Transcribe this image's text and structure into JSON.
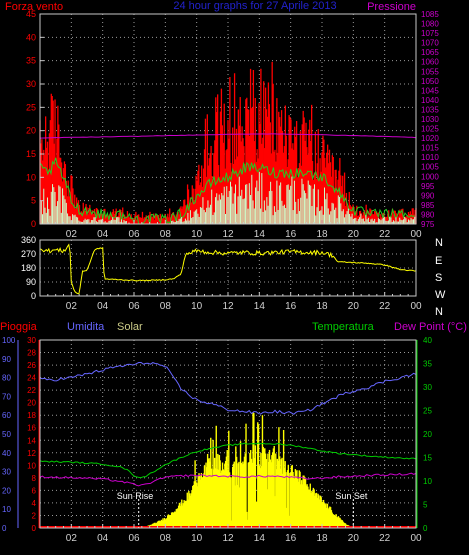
{
  "header": {
    "left_label": "Forza vento",
    "title": "24 hour graphs for 27 Aprile 2013",
    "right_label": "Pressione"
  },
  "colors": {
    "background": "#000000",
    "grid": "#9a9a9a",
    "wind_gust": "#ff0000",
    "wind_avg": "#22cc22",
    "wind_speed": "#ccffcc",
    "pressure": "#cc00cc",
    "direction": "#ffff00",
    "rain": "#ff0000",
    "humidity": "#6666ff",
    "solar": "#ffff00",
    "temperature": "#00cc00",
    "dew_point": "#cc00cc",
    "header_blue": "#2222cc"
  },
  "chart_data": [
    {
      "type": "area",
      "id": "wind_pressure",
      "xlabel": "",
      "x_ticks": [
        "02",
        "04",
        "06",
        "08",
        "10",
        "12",
        "14",
        "16",
        "18",
        "20",
        "22",
        "00"
      ],
      "x_range_hours": [
        0,
        24
      ],
      "y_left": {
        "label": "Forza vento",
        "range": [
          0,
          45
        ],
        "ticks": [
          0,
          5,
          10,
          15,
          20,
          25,
          30,
          35,
          40,
          45
        ]
      },
      "y_right": {
        "label": "Pressione",
        "range": [
          975,
          1085
        ],
        "ticks": [
          975,
          980,
          985,
          990,
          995,
          1000,
          1005,
          1010,
          1015,
          1020,
          1025,
          1030,
          1035,
          1040,
          1045,
          1050,
          1055,
          1060,
          1065,
          1070,
          1075,
          1080,
          1085
        ]
      },
      "series": [
        {
          "name": "Forza vento",
          "kind": "gust",
          "hours": [
            0,
            0.5,
            1,
            1.5,
            2,
            2.5,
            3,
            4,
            5,
            6,
            7,
            8,
            9,
            10,
            10.5,
            11,
            11.5,
            12,
            13,
            14,
            14.5,
            15,
            16,
            17,
            18,
            18.5,
            19,
            19.5,
            20,
            21,
            22,
            23,
            24
          ],
          "values": [
            20,
            24,
            26,
            16,
            10,
            4,
            4,
            3,
            3,
            2,
            2,
            2,
            4,
            10,
            17,
            20,
            22,
            24,
            26,
            25,
            28,
            26,
            23,
            21,
            17,
            14,
            12,
            8,
            4,
            3,
            2,
            3,
            3
          ]
        },
        {
          "kind": "average",
          "hours": [
            0,
            0.5,
            1,
            1.5,
            2,
            2.5,
            3,
            4,
            5,
            6,
            7,
            8,
            9,
            10,
            11,
            12,
            13,
            14,
            15,
            16,
            17,
            18,
            18.5,
            19,
            19.5,
            20,
            21,
            22,
            23,
            24
          ],
          "values": [
            12,
            11,
            13,
            10,
            5,
            3,
            3,
            2,
            2,
            1,
            1,
            1,
            2,
            6,
            9,
            10,
            12,
            12,
            11,
            11,
            11,
            10,
            9,
            7,
            5,
            3,
            2,
            2,
            2,
            2
          ]
        },
        {
          "kind": "speed",
          "hours": [
            0,
            0.5,
            1,
            1.5,
            2,
            2.5,
            3,
            4,
            5,
            6,
            7,
            8,
            9,
            10,
            11,
            12,
            13,
            14,
            15,
            16,
            17,
            18,
            18.5,
            19,
            19.5,
            20,
            21,
            22,
            23,
            24
          ],
          "values": [
            5,
            5,
            6,
            5,
            2,
            1,
            1,
            1,
            1,
            0,
            0,
            0,
            1,
            3,
            5,
            6,
            7,
            7,
            6,
            7,
            6,
            5,
            5,
            4,
            3,
            2,
            1,
            1,
            1,
            1
          ]
        },
        {
          "name": "Pressione",
          "axis": "right",
          "hours": [
            0,
            2,
            4,
            6,
            8,
            10,
            12,
            14,
            16,
            18,
            20,
            22,
            24
          ],
          "values": [
            1020.0,
            1020.4,
            1020.6,
            1020.9,
            1021.3,
            1021.6,
            1021.9,
            1022.2,
            1022.1,
            1021.7,
            1021.3,
            1020.9,
            1020.3
          ]
        }
      ]
    },
    {
      "type": "line",
      "id": "wind_direction",
      "x_ticks": [
        "02",
        "04",
        "06",
        "08",
        "10",
        "12",
        "14",
        "16",
        "18",
        "20",
        "22",
        "00"
      ],
      "x_range_hours": [
        0,
        24
      ],
      "y_left": {
        "range": [
          0,
          360
        ],
        "ticks": [
          0,
          90,
          180,
          270,
          360
        ]
      },
      "y_right": {
        "labels": [
          "N",
          "W",
          "S",
          "E",
          "N"
        ]
      },
      "series": [
        {
          "kind": "direction",
          "hours": [
            0,
            0.5,
            1,
            1.5,
            1.9,
            2.0,
            2.2,
            2.5,
            2.7,
            3.0,
            3.5,
            4.0,
            4.1,
            5,
            6,
            7,
            8,
            8.5,
            9.0,
            9.3,
            10,
            11,
            12,
            13,
            14,
            15,
            16,
            17,
            18,
            18.7,
            19,
            20,
            21,
            22,
            23,
            24
          ],
          "values": [
            305,
            290,
            295,
            290,
            330,
            90,
            30,
            10,
            160,
            165,
            300,
            310,
            110,
            105,
            100,
            100,
            105,
            110,
            140,
            270,
            290,
            280,
            275,
            280,
            275,
            280,
            285,
            280,
            280,
            260,
            220,
            215,
            210,
            200,
            170,
            160
          ]
        }
      ]
    },
    {
      "type": "area",
      "id": "weather",
      "x_ticks": [
        "02",
        "04",
        "06",
        "08",
        "10",
        "12",
        "14",
        "16",
        "18",
        "20",
        "22",
        "00"
      ],
      "x_range_hours": [
        0,
        24
      ],
      "legend": [
        "Pioggia",
        "Umidita",
        "Solar",
        "Temperatura",
        "Dew Point (°C)"
      ],
      "y_axis_rain": {
        "label": "Pioggia",
        "range": [
          0,
          30
        ],
        "ticks": [
          0,
          2,
          4,
          6,
          8,
          10,
          12,
          14,
          16,
          18,
          20,
          22,
          24,
          26,
          28,
          30
        ]
      },
      "y_axis_humidity": {
        "label": "Umidita",
        "range": [
          0,
          100
        ],
        "ticks": [
          0,
          10,
          20,
          30,
          40,
          50,
          60,
          70,
          80,
          90,
          100
        ]
      },
      "y_axis_temp": {
        "label": "Temperatura",
        "range": [
          0,
          40
        ],
        "ticks": [
          0,
          5,
          10,
          15,
          20,
          25,
          30,
          35,
          40
        ]
      },
      "annotations": [
        "Sun Rise",
        "Sun Set"
      ],
      "series": [
        {
          "name": "Pioggia",
          "kind": "rain",
          "hours": [
            0,
            24
          ],
          "values": [
            0,
            0
          ]
        },
        {
          "name": "Umidita",
          "kind": "humidity",
          "hours": [
            0,
            1,
            2,
            3,
            4,
            5,
            6,
            7,
            8,
            9,
            10,
            11,
            12,
            13,
            14,
            15,
            16,
            17,
            18,
            19,
            20,
            21,
            22,
            23,
            24
          ],
          "values": [
            79,
            79,
            80,
            82,
            84,
            86,
            87,
            88,
            86,
            74,
            68,
            66,
            63,
            62,
            61,
            62,
            61,
            62,
            66,
            70,
            73,
            75,
            78,
            80,
            82
          ]
        },
        {
          "name": "Solar",
          "kind": "solar",
          "hours": [
            0,
            6.3,
            6.8,
            7.2,
            7.6,
            8.0,
            8.4,
            8.8,
            9.2,
            9.5,
            9.8,
            10.1,
            10.4,
            10.7,
            11.0,
            11.3,
            11.6,
            11.9,
            12.2,
            12.5,
            12.8,
            13.1,
            13.4,
            13.7,
            14.0,
            14.3,
            14.6,
            14.9,
            15.2,
            15.5,
            15.8,
            16.1,
            16.4,
            16.7,
            17.0,
            17.3,
            17.6,
            18.0,
            18.4,
            18.8,
            19.2,
            19.6,
            20.0,
            24
          ],
          "values": [
            0,
            0,
            0.3,
            0.7,
            1.2,
            1.8,
            2.8,
            3.8,
            5,
            6,
            7.5,
            9,
            9.5,
            12,
            10,
            12.5,
            11,
            13,
            10,
            13.5,
            14,
            12,
            14,
            13.5,
            12,
            14,
            13,
            13.5,
            12,
            11.5,
            12,
            10.5,
            9.5,
            9,
            8,
            7,
            6,
            5,
            3.8,
            2.6,
            1.5,
            0.6,
            0,
            0
          ]
        },
        {
          "name": "Temperatura",
          "kind": "temperature",
          "hours": [
            0,
            1,
            2,
            3,
            4,
            5,
            5.5,
            6,
            6.5,
            7,
            8,
            9,
            10,
            11,
            12,
            13,
            14,
            15,
            16,
            17,
            18,
            19,
            20,
            21,
            22,
            23,
            24
          ],
          "values": [
            14.2,
            14.1,
            14.0,
            13.8,
            13.6,
            13.1,
            12.5,
            11.2,
            10.6,
            11.5,
            13.5,
            15.0,
            16.3,
            17.0,
            17.6,
            17.9,
            18.0,
            17.9,
            17.6,
            17.1,
            16.4,
            15.9,
            15.6,
            15.3,
            15.1,
            14.9,
            14.7
          ]
        },
        {
          "name": "Dew Point (°C)",
          "kind": "dewpoint",
          "hours": [
            0,
            1,
            2,
            3,
            4,
            5,
            6,
            6.5,
            7,
            8,
            9,
            10,
            11,
            12,
            13,
            14,
            15,
            16,
            17,
            18,
            19,
            20,
            21,
            22,
            23,
            24
          ],
          "values": [
            10.9,
            10.8,
            10.7,
            10.6,
            10.4,
            10.0,
            9.3,
            9.0,
            9.6,
            10.8,
            11.1,
            11.2,
            11.1,
            11.0,
            10.9,
            11.0,
            11.0,
            10.8,
            10.5,
            10.6,
            10.9,
            11.0,
            11.2,
            11.3,
            11.4,
            11.6
          ]
        }
      ]
    }
  ]
}
